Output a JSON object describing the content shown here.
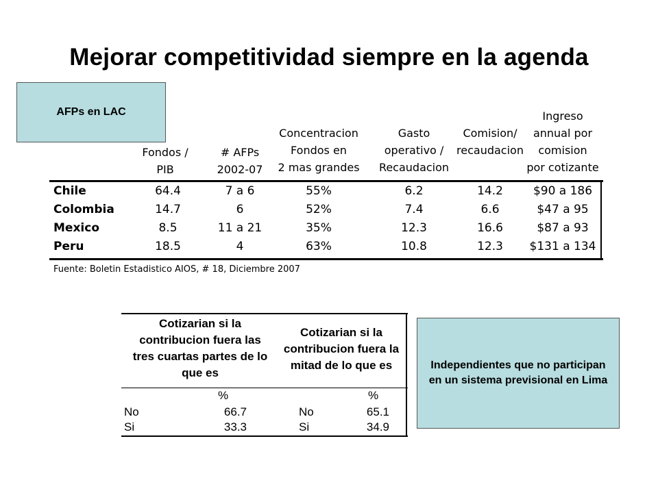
{
  "title": "Mejorar competitividad siempre en la agenda",
  "box_afp": "AFPs en LAC",
  "box_independientes": "Independientes que no participan  en un sistema previsional en Lima",
  "table1": {
    "headers": [
      [
        "Fondos /",
        "PIB"
      ],
      [
        "# AFPs",
        "2002-07"
      ],
      [
        "Concentracion",
        "Fondos en",
        "2 mas grandes"
      ],
      [
        "Gasto",
        "operativo /",
        "Recaudacion"
      ],
      [
        "Comision/",
        "recaudacion"
      ],
      [
        "Ingreso",
        "annual por",
        "comision",
        "por cotizante"
      ]
    ],
    "rows": [
      [
        "Chile",
        "64.4",
        "7 a 6",
        "55%",
        "6.2",
        "14.2",
        "$90 a 186"
      ],
      [
        "Colombia",
        "14.7",
        "6",
        "52%",
        "7.4",
        "6.6",
        "$47 a 95"
      ],
      [
        "Mexico",
        "8.5",
        "11 a 21",
        "35%",
        "12.3",
        "16.6",
        "$87 a 93"
      ],
      [
        "Peru",
        "18.5",
        "4",
        "63%",
        "10.8",
        "12.3",
        "$131 a 134"
      ]
    ],
    "source": "Fuente: Boletin Estadistico AIOS, # 18, Diciembre 2007"
  },
  "table2": {
    "headers": [
      [
        "Cotizarian si la",
        "contribucion fuera las",
        "tres cuartas partes de lo",
        "que es"
      ],
      [
        "Cotizarian si la",
        "contribucion fuera la",
        "mitad de lo que es"
      ]
    ],
    "unit": "%",
    "rows": [
      [
        "No",
        "66.7",
        "No",
        "65.1"
      ],
      [
        "Si",
        "33.3",
        "Si",
        "34.9"
      ]
    ]
  }
}
